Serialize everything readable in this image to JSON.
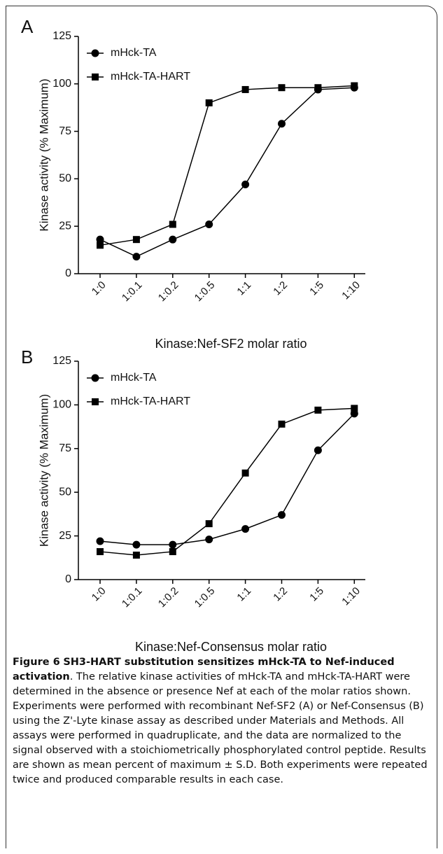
{
  "chart_data": [
    {
      "type": "line",
      "panel": "A",
      "x_label": "Kinase:Nef-SF2 molar ratio",
      "y_label": "Kinase activity (% Maximum)",
      "categories": [
        "1:0",
        "1:0.1",
        "1:0.2",
        "1:0.5",
        "1:1",
        "1:2",
        "1:5",
        "1:10"
      ],
      "series": [
        {
          "name": "mHck-TA",
          "color": "#000000",
          "marker": "circle",
          "values": [
            18,
            9,
            18,
            26,
            47,
            79,
            97,
            98
          ]
        },
        {
          "name": "mHck-TA-HART",
          "color": "#000000",
          "marker": "square",
          "values": [
            15,
            18,
            26,
            90,
            97,
            98,
            98,
            99
          ]
        }
      ],
      "ylim": [
        0,
        125
      ],
      "yticks": [
        0,
        25,
        50,
        75,
        100,
        125
      ],
      "legend": "upper left",
      "grid": false
    },
    {
      "type": "line",
      "panel": "B",
      "x_label": "Kinase:Nef-Consensus molar ratio",
      "y_label": "Kinase activity (% Maximum)",
      "categories": [
        "1:0",
        "1:0.1",
        "1:0.2",
        "1:0.5",
        "1:1",
        "1:2",
        "1:5",
        "1:10"
      ],
      "series": [
        {
          "name": "mHck-TA",
          "color": "#000000",
          "marker": "circle",
          "values": [
            22,
            20,
            20,
            23,
            29,
            37,
            74,
            95
          ]
        },
        {
          "name": "mHck-TA-HART",
          "color": "#000000",
          "marker": "square",
          "values": [
            16,
            14,
            16,
            32,
            61,
            89,
            97,
            98
          ]
        }
      ],
      "ylim": [
        0,
        125
      ],
      "yticks": [
        0,
        25,
        50,
        75,
        100,
        125
      ],
      "legend": "upper left",
      "grid": false
    }
  ],
  "caption": {
    "label": "Figure 6",
    "title": "SH3-HART substitution sensitizes mHck-TA to Nef-induced activation",
    "text": ". The relative kinase activities of mHck-TA and mHck-TA-HART were determined in the absence or presence Nef at each of the molar ratios shown. Experiments were performed with recombinant Nef-SF2 (A) or Nef-Consensus (B) using the Z'-Lyte kinase assay as described under Materials and Methods. All assays were performed in quadruplicate, and the data are normalized to the signal observed with a stoichiometrically phosphorylated control peptide. Results are shown as mean percent of maximum ± S.D. Both experiments were repeated twice and produced comparable results in each case."
  }
}
